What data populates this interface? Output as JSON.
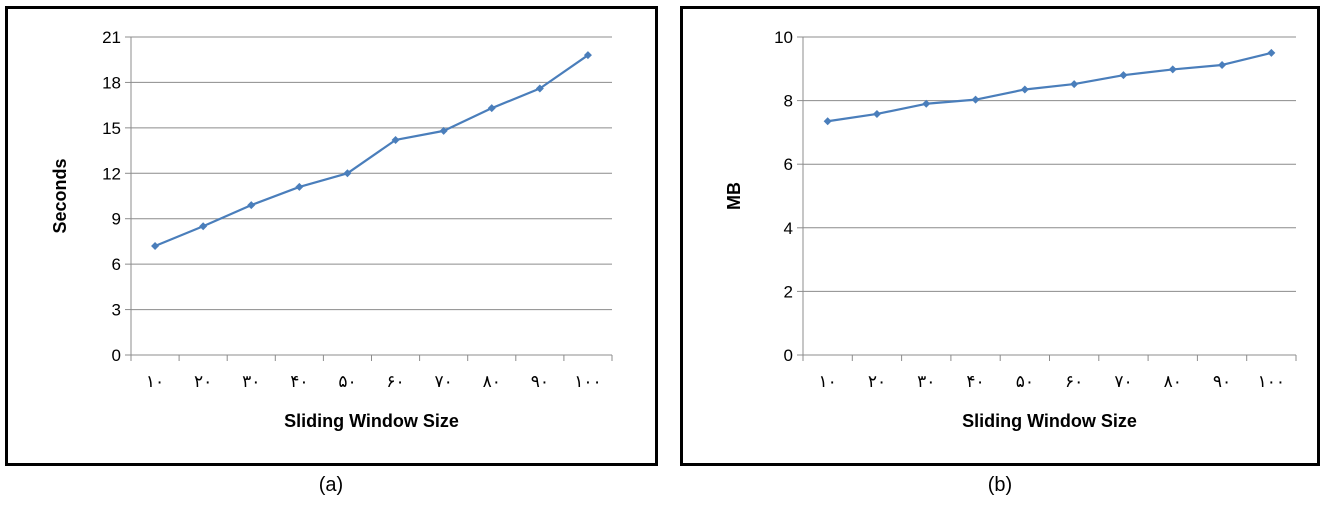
{
  "chart_data": [
    {
      "type": "line",
      "panel_label": "(a)",
      "categories": [
        "۱۰",
        "۲۰",
        "۳۰",
        "۴۰",
        "۵۰",
        "۶۰",
        "۷۰",
        "۸۰",
        "۹۰",
        "۱۰۰"
      ],
      "series": [
        {
          "values": [
            7.2,
            8.5,
            9.9,
            11.1,
            12.0,
            14.2,
            14.8,
            16.3,
            17.6,
            19.8
          ]
        }
      ],
      "xlabel": "Sliding Window Size",
      "ylabel": "Seconds",
      "ylim": [
        0,
        21
      ],
      "yticks": [
        "0",
        "3",
        "6",
        "9",
        "12",
        "15",
        "18",
        "21"
      ],
      "grid": "horizontal",
      "line_color": "#4a7ebb"
    },
    {
      "type": "line",
      "panel_label": "(b)",
      "categories": [
        "۱۰",
        "۲۰",
        "۳۰",
        "۴۰",
        "۵۰",
        "۶۰",
        "۷۰",
        "۸۰",
        "۹۰",
        "۱۰۰"
      ],
      "series": [
        {
          "values": [
            7.35,
            7.58,
            7.9,
            8.03,
            8.35,
            8.52,
            8.8,
            8.98,
            9.12,
            9.5
          ]
        }
      ],
      "xlabel": "Sliding Window Size",
      "ylabel": "MB",
      "ylim": [
        0,
        10
      ],
      "yticks": [
        "0",
        "2",
        "4",
        "6",
        "8",
        "10"
      ],
      "grid": "horizontal",
      "line_color": "#4a7ebb"
    }
  ]
}
